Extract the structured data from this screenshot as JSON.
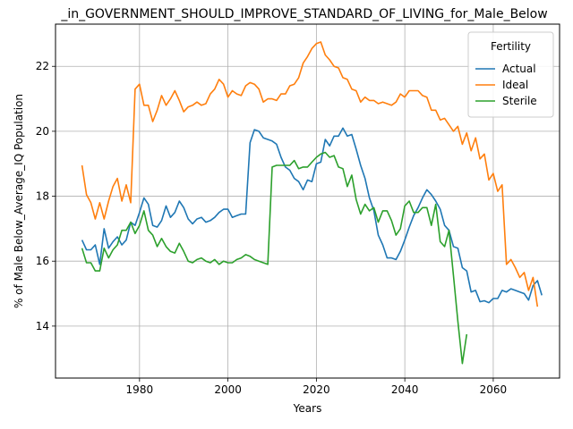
{
  "chart_data": {
    "type": "line",
    "title": "_in_GOVERNMENT_SHOULD_IMPROVE_STANDARD_OF_LIVING_for_Male_Below",
    "xlabel": "Years",
    "ylabel": "% of Male Below_Average_IQ Population",
    "xlim": [
      1961,
      2075
    ],
    "ylim": [
      12.4,
      23.3
    ],
    "xticks": [
      1980,
      2000,
      2020,
      2040,
      2060
    ],
    "yticks": [
      14,
      16,
      18,
      20,
      22
    ],
    "xtick_labels": [
      "1980",
      "2000",
      "2020",
      "2040",
      "2060"
    ],
    "ytick_labels": [
      "14",
      "16",
      "18",
      "20",
      "22"
    ],
    "grid": true,
    "legend": {
      "title": "Fertility",
      "position": "top-right"
    },
    "series": [
      {
        "name": "Actual",
        "color": "#1f77b4",
        "points": [
          [
            1967,
            16.65
          ],
          [
            1968,
            16.35
          ],
          [
            1969,
            16.35
          ],
          [
            1970,
            16.5
          ],
          [
            1971,
            15.9
          ],
          [
            1972,
            17.0
          ],
          [
            1973,
            16.4
          ],
          [
            1974,
            16.6
          ],
          [
            1975,
            16.75
          ],
          [
            1976,
            16.5
          ],
          [
            1977,
            16.65
          ],
          [
            1978,
            17.2
          ],
          [
            1979,
            17.1
          ],
          [
            1980,
            17.5
          ],
          [
            1981,
            17.95
          ],
          [
            1982,
            17.75
          ],
          [
            1983,
            17.1
          ],
          [
            1984,
            17.05
          ],
          [
            1985,
            17.25
          ],
          [
            1986,
            17.7
          ],
          [
            1987,
            17.35
          ],
          [
            1988,
            17.5
          ],
          [
            1989,
            17.85
          ],
          [
            1990,
            17.65
          ],
          [
            1991,
            17.3
          ],
          [
            1992,
            17.15
          ],
          [
            1993,
            17.3
          ],
          [
            1994,
            17.35
          ],
          [
            1995,
            17.2
          ],
          [
            1996,
            17.25
          ],
          [
            1997,
            17.35
          ],
          [
            1998,
            17.5
          ],
          [
            1999,
            17.6
          ],
          [
            2000,
            17.6
          ],
          [
            2001,
            17.35
          ],
          [
            2002,
            17.4
          ],
          [
            2003,
            17.45
          ],
          [
            2004,
            17.45
          ],
          [
            2005,
            19.65
          ],
          [
            2006,
            20.05
          ],
          [
            2007,
            20.0
          ],
          [
            2008,
            19.8
          ],
          [
            2009,
            19.75
          ],
          [
            2010,
            19.7
          ],
          [
            2011,
            19.6
          ],
          [
            2012,
            19.2
          ],
          [
            2013,
            18.9
          ],
          [
            2014,
            18.8
          ],
          [
            2015,
            18.55
          ],
          [
            2016,
            18.45
          ],
          [
            2017,
            18.2
          ],
          [
            2018,
            18.5
          ],
          [
            2019,
            18.45
          ],
          [
            2020,
            19.0
          ],
          [
            2021,
            19.05
          ],
          [
            2022,
            19.75
          ],
          [
            2023,
            19.55
          ],
          [
            2024,
            19.85
          ],
          [
            2025,
            19.85
          ],
          [
            2026,
            20.1
          ],
          [
            2027,
            19.85
          ],
          [
            2028,
            19.9
          ],
          [
            2029,
            19.45
          ],
          [
            2030,
            18.95
          ],
          [
            2031,
            18.55
          ],
          [
            2032,
            17.95
          ],
          [
            2033,
            17.55
          ],
          [
            2034,
            16.8
          ],
          [
            2035,
            16.5
          ],
          [
            2036,
            16.1
          ],
          [
            2037,
            16.1
          ],
          [
            2038,
            16.05
          ],
          [
            2039,
            16.3
          ],
          [
            2040,
            16.65
          ],
          [
            2041,
            17.05
          ],
          [
            2042,
            17.4
          ],
          [
            2043,
            17.65
          ],
          [
            2044,
            17.95
          ],
          [
            2045,
            18.2
          ],
          [
            2046,
            18.05
          ],
          [
            2047,
            17.85
          ],
          [
            2048,
            17.6
          ],
          [
            2049,
            17.1
          ],
          [
            2050,
            16.95
          ],
          [
            2051,
            16.45
          ],
          [
            2052,
            16.4
          ],
          [
            2053,
            15.8
          ],
          [
            2054,
            15.7
          ],
          [
            2055,
            15.05
          ],
          [
            2056,
            15.1
          ],
          [
            2057,
            14.75
          ],
          [
            2058,
            14.78
          ],
          [
            2059,
            14.72
          ],
          [
            2060,
            14.85
          ],
          [
            2061,
            14.85
          ],
          [
            2062,
            15.1
          ],
          [
            2063,
            15.05
          ],
          [
            2064,
            15.15
          ],
          [
            2065,
            15.1
          ],
          [
            2066,
            15.05
          ],
          [
            2067,
            15.0
          ],
          [
            2068,
            14.8
          ],
          [
            2069,
            15.25
          ],
          [
            2070,
            15.4
          ],
          [
            2071,
            14.95
          ]
        ]
      },
      {
        "name": "Ideal",
        "color": "#ff7f0e",
        "points": [
          [
            1967,
            18.95
          ],
          [
            1968,
            18.05
          ],
          [
            1969,
            17.8
          ],
          [
            1970,
            17.3
          ],
          [
            1971,
            17.8
          ],
          [
            1972,
            17.3
          ],
          [
            1973,
            17.85
          ],
          [
            1974,
            18.3
          ],
          [
            1975,
            18.55
          ],
          [
            1976,
            17.85
          ],
          [
            1977,
            18.35
          ],
          [
            1978,
            17.8
          ],
          [
            1979,
            21.3
          ],
          [
            1980,
            21.45
          ],
          [
            1981,
            20.8
          ],
          [
            1982,
            20.8
          ],
          [
            1983,
            20.3
          ],
          [
            1984,
            20.65
          ],
          [
            1985,
            21.1
          ],
          [
            1986,
            20.8
          ],
          [
            1987,
            21.0
          ],
          [
            1988,
            21.25
          ],
          [
            1989,
            20.95
          ],
          [
            1990,
            20.6
          ],
          [
            1991,
            20.75
          ],
          [
            1992,
            20.8
          ],
          [
            1993,
            20.9
          ],
          [
            1994,
            20.8
          ],
          [
            1995,
            20.85
          ],
          [
            1996,
            21.15
          ],
          [
            1997,
            21.3
          ],
          [
            1998,
            21.6
          ],
          [
            1999,
            21.45
          ],
          [
            2000,
            21.05
          ],
          [
            2001,
            21.25
          ],
          [
            2002,
            21.15
          ],
          [
            2003,
            21.1
          ],
          [
            2004,
            21.4
          ],
          [
            2005,
            21.5
          ],
          [
            2006,
            21.45
          ],
          [
            2007,
            21.3
          ],
          [
            2008,
            20.9
          ],
          [
            2009,
            21.0
          ],
          [
            2010,
            21.0
          ],
          [
            2011,
            20.95
          ],
          [
            2012,
            21.15
          ],
          [
            2013,
            21.15
          ],
          [
            2014,
            21.4
          ],
          [
            2015,
            21.45
          ],
          [
            2016,
            21.65
          ],
          [
            2017,
            22.1
          ],
          [
            2018,
            22.3
          ],
          [
            2019,
            22.55
          ],
          [
            2020,
            22.7
          ],
          [
            2021,
            22.75
          ],
          [
            2022,
            22.35
          ],
          [
            2023,
            22.2
          ],
          [
            2024,
            22.0
          ],
          [
            2025,
            21.95
          ],
          [
            2026,
            21.65
          ],
          [
            2027,
            21.6
          ],
          [
            2028,
            21.3
          ],
          [
            2029,
            21.25
          ],
          [
            2030,
            20.9
          ],
          [
            2031,
            21.05
          ],
          [
            2032,
            20.95
          ],
          [
            2033,
            20.95
          ],
          [
            2034,
            20.85
          ],
          [
            2035,
            20.9
          ],
          [
            2036,
            20.85
          ],
          [
            2037,
            20.8
          ],
          [
            2038,
            20.9
          ],
          [
            2039,
            21.15
          ],
          [
            2040,
            21.05
          ],
          [
            2041,
            21.25
          ],
          [
            2042,
            21.25
          ],
          [
            2043,
            21.25
          ],
          [
            2044,
            21.1
          ],
          [
            2045,
            21.05
          ],
          [
            2046,
            20.65
          ],
          [
            2047,
            20.65
          ],
          [
            2048,
            20.35
          ],
          [
            2049,
            20.4
          ],
          [
            2050,
            20.2
          ],
          [
            2051,
            20.0
          ],
          [
            2052,
            20.15
          ],
          [
            2053,
            19.6
          ],
          [
            2054,
            19.95
          ],
          [
            2055,
            19.4
          ],
          [
            2056,
            19.8
          ],
          [
            2057,
            19.15
          ],
          [
            2058,
            19.3
          ],
          [
            2059,
            18.5
          ],
          [
            2060,
            18.7
          ],
          [
            2061,
            18.15
          ],
          [
            2062,
            18.35
          ],
          [
            2063,
            15.9
          ],
          [
            2064,
            16.05
          ],
          [
            2065,
            15.8
          ],
          [
            2066,
            15.5
          ],
          [
            2067,
            15.65
          ],
          [
            2068,
            15.1
          ],
          [
            2069,
            15.5
          ],
          [
            2070,
            14.6
          ]
        ]
      },
      {
        "name": "Sterile",
        "color": "#2ca02c",
        "points": [
          [
            1967,
            16.4
          ],
          [
            1968,
            15.95
          ],
          [
            1969,
            15.95
          ],
          [
            1970,
            15.7
          ],
          [
            1971,
            15.7
          ],
          [
            1972,
            16.4
          ],
          [
            1973,
            16.1
          ],
          [
            1974,
            16.35
          ],
          [
            1975,
            16.5
          ],
          [
            1976,
            16.95
          ],
          [
            1977,
            16.95
          ],
          [
            1978,
            17.2
          ],
          [
            1979,
            16.85
          ],
          [
            1980,
            17.1
          ],
          [
            1981,
            17.55
          ],
          [
            1982,
            16.95
          ],
          [
            1983,
            16.8
          ],
          [
            1984,
            16.45
          ],
          [
            1985,
            16.7
          ],
          [
            1986,
            16.45
          ],
          [
            1987,
            16.3
          ],
          [
            1988,
            16.25
          ],
          [
            1989,
            16.55
          ],
          [
            1990,
            16.3
          ],
          [
            1991,
            16.0
          ],
          [
            1992,
            15.95
          ],
          [
            1993,
            16.05
          ],
          [
            1994,
            16.1
          ],
          [
            1995,
            16.0
          ],
          [
            1996,
            15.95
          ],
          [
            1997,
            16.05
          ],
          [
            1998,
            15.9
          ],
          [
            1999,
            16.0
          ],
          [
            2000,
            15.95
          ],
          [
            2001,
            15.95
          ],
          [
            2002,
            16.05
          ],
          [
            2003,
            16.1
          ],
          [
            2004,
            16.2
          ],
          [
            2005,
            16.15
          ],
          [
            2006,
            16.05
          ],
          [
            2007,
            16.0
          ],
          [
            2008,
            15.95
          ],
          [
            2009,
            15.9
          ],
          [
            2010,
            18.9
          ],
          [
            2011,
            18.95
          ],
          [
            2012,
            18.95
          ],
          [
            2013,
            18.95
          ],
          [
            2014,
            18.95
          ],
          [
            2015,
            19.1
          ],
          [
            2016,
            18.85
          ],
          [
            2017,
            18.9
          ],
          [
            2018,
            18.9
          ],
          [
            2019,
            19.05
          ],
          [
            2020,
            19.2
          ],
          [
            2021,
            19.3
          ],
          [
            2022,
            19.35
          ],
          [
            2023,
            19.2
          ],
          [
            2024,
            19.25
          ],
          [
            2025,
            18.9
          ],
          [
            2026,
            18.85
          ],
          [
            2027,
            18.3
          ],
          [
            2028,
            18.65
          ],
          [
            2029,
            17.9
          ],
          [
            2030,
            17.45
          ],
          [
            2031,
            17.75
          ],
          [
            2032,
            17.55
          ],
          [
            2033,
            17.65
          ],
          [
            2034,
            17.2
          ],
          [
            2035,
            17.55
          ],
          [
            2036,
            17.55
          ],
          [
            2037,
            17.25
          ],
          [
            2038,
            16.8
          ],
          [
            2039,
            17.0
          ],
          [
            2040,
            17.7
          ],
          [
            2041,
            17.85
          ],
          [
            2042,
            17.5
          ],
          [
            2043,
            17.5
          ],
          [
            2044,
            17.65
          ],
          [
            2045,
            17.65
          ],
          [
            2046,
            17.1
          ],
          [
            2047,
            17.75
          ],
          [
            2048,
            16.6
          ],
          [
            2049,
            16.45
          ],
          [
            2050,
            16.95
          ],
          [
            2051,
            15.55
          ],
          [
            2052,
            14.15
          ],
          [
            2053,
            12.85
          ],
          [
            2054,
            13.75
          ]
        ]
      }
    ]
  }
}
